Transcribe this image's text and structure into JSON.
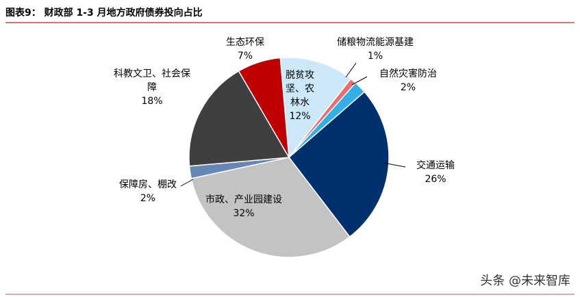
{
  "chart_data": {
    "type": "pie",
    "title": "图表9：  财政部 1-3 月地方政府债券投向占比",
    "watermark": "头条 @未来智库",
    "categories": [
      "脱贫攻坚、农林水",
      "储粮物流能源基建",
      "自然灾害防治",
      "交通运输",
      "市政、产业园建设",
      "保障房、棚改",
      "科教文卫、社会保障",
      "生态环保"
    ],
    "values": [
      12,
      1,
      2,
      26,
      32,
      2,
      18,
      7
    ],
    "value_labels": [
      "12%",
      "1%",
      "2%",
      "26%",
      "32%",
      "2%",
      "18%",
      "7%"
    ],
    "colors": [
      "#cde9f9",
      "#f06b6b",
      "#33aee6",
      "#00306e",
      "#c3c3c3",
      "#6686b6",
      "#3f3f3f",
      "#c00000"
    ]
  }
}
